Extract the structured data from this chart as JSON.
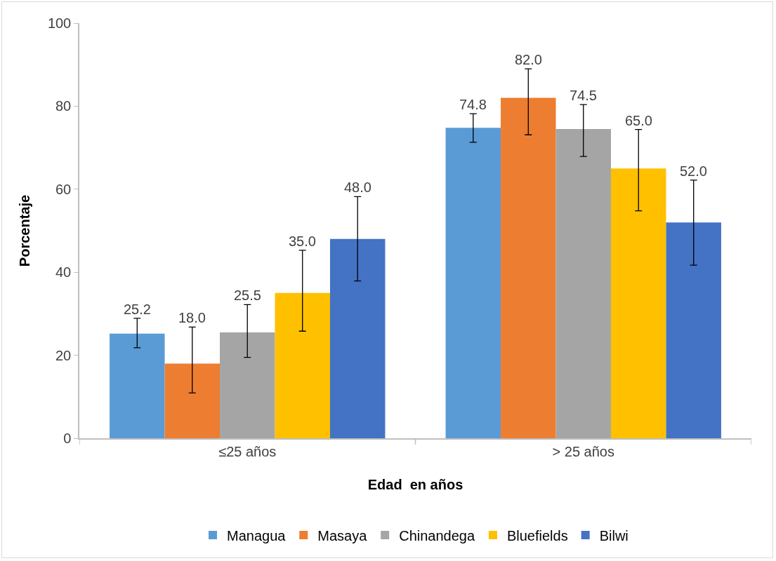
{
  "chart_data": {
    "type": "bar",
    "xlabel": "Edad  en años",
    "ylabel": "Porcentaje",
    "categories": [
      "≤25 años",
      "> 25 años"
    ],
    "series": [
      {
        "name": "Managua",
        "color": "#5b9bd5",
        "values": [
          25.2,
          74.8
        ],
        "value_labels": [
          "25.2",
          "74.8"
        ],
        "errors": [
          [
            21.8,
            28.9
          ],
          [
            71.3,
            78.2
          ]
        ]
      },
      {
        "name": "Masaya",
        "color": "#ed7d31",
        "values": [
          18.0,
          82.0
        ],
        "value_labels": [
          "18.0",
          "82.0"
        ],
        "errors": [
          [
            10.9,
            26.8
          ],
          [
            73.1,
            89.0
          ]
        ]
      },
      {
        "name": "Chinandega",
        "color": "#a5a5a5",
        "values": [
          25.5,
          74.5
        ],
        "value_labels": [
          "25.5",
          "74.5"
        ],
        "errors": [
          [
            19.5,
            32.2
          ],
          [
            67.9,
            80.4
          ]
        ]
      },
      {
        "name": "Bluefields",
        "color": "#ffc000",
        "values": [
          35.0,
          65.0
        ],
        "value_labels": [
          "35.0",
          "65.0"
        ],
        "errors": [
          [
            25.8,
            45.3
          ],
          [
            54.8,
            74.4
          ]
        ]
      },
      {
        "name": "Bilwi",
        "color": "#4472c4",
        "values": [
          48.0,
          52.0
        ],
        "value_labels": [
          "48.0",
          "52.0"
        ],
        "errors": [
          [
            37.9,
            58.2
          ],
          [
            41.7,
            62.2
          ]
        ]
      }
    ],
    "ylim": [
      0,
      100
    ],
    "yticks": [
      0,
      20,
      40,
      60,
      80,
      100
    ],
    "grid": false,
    "legend": "bottom"
  }
}
